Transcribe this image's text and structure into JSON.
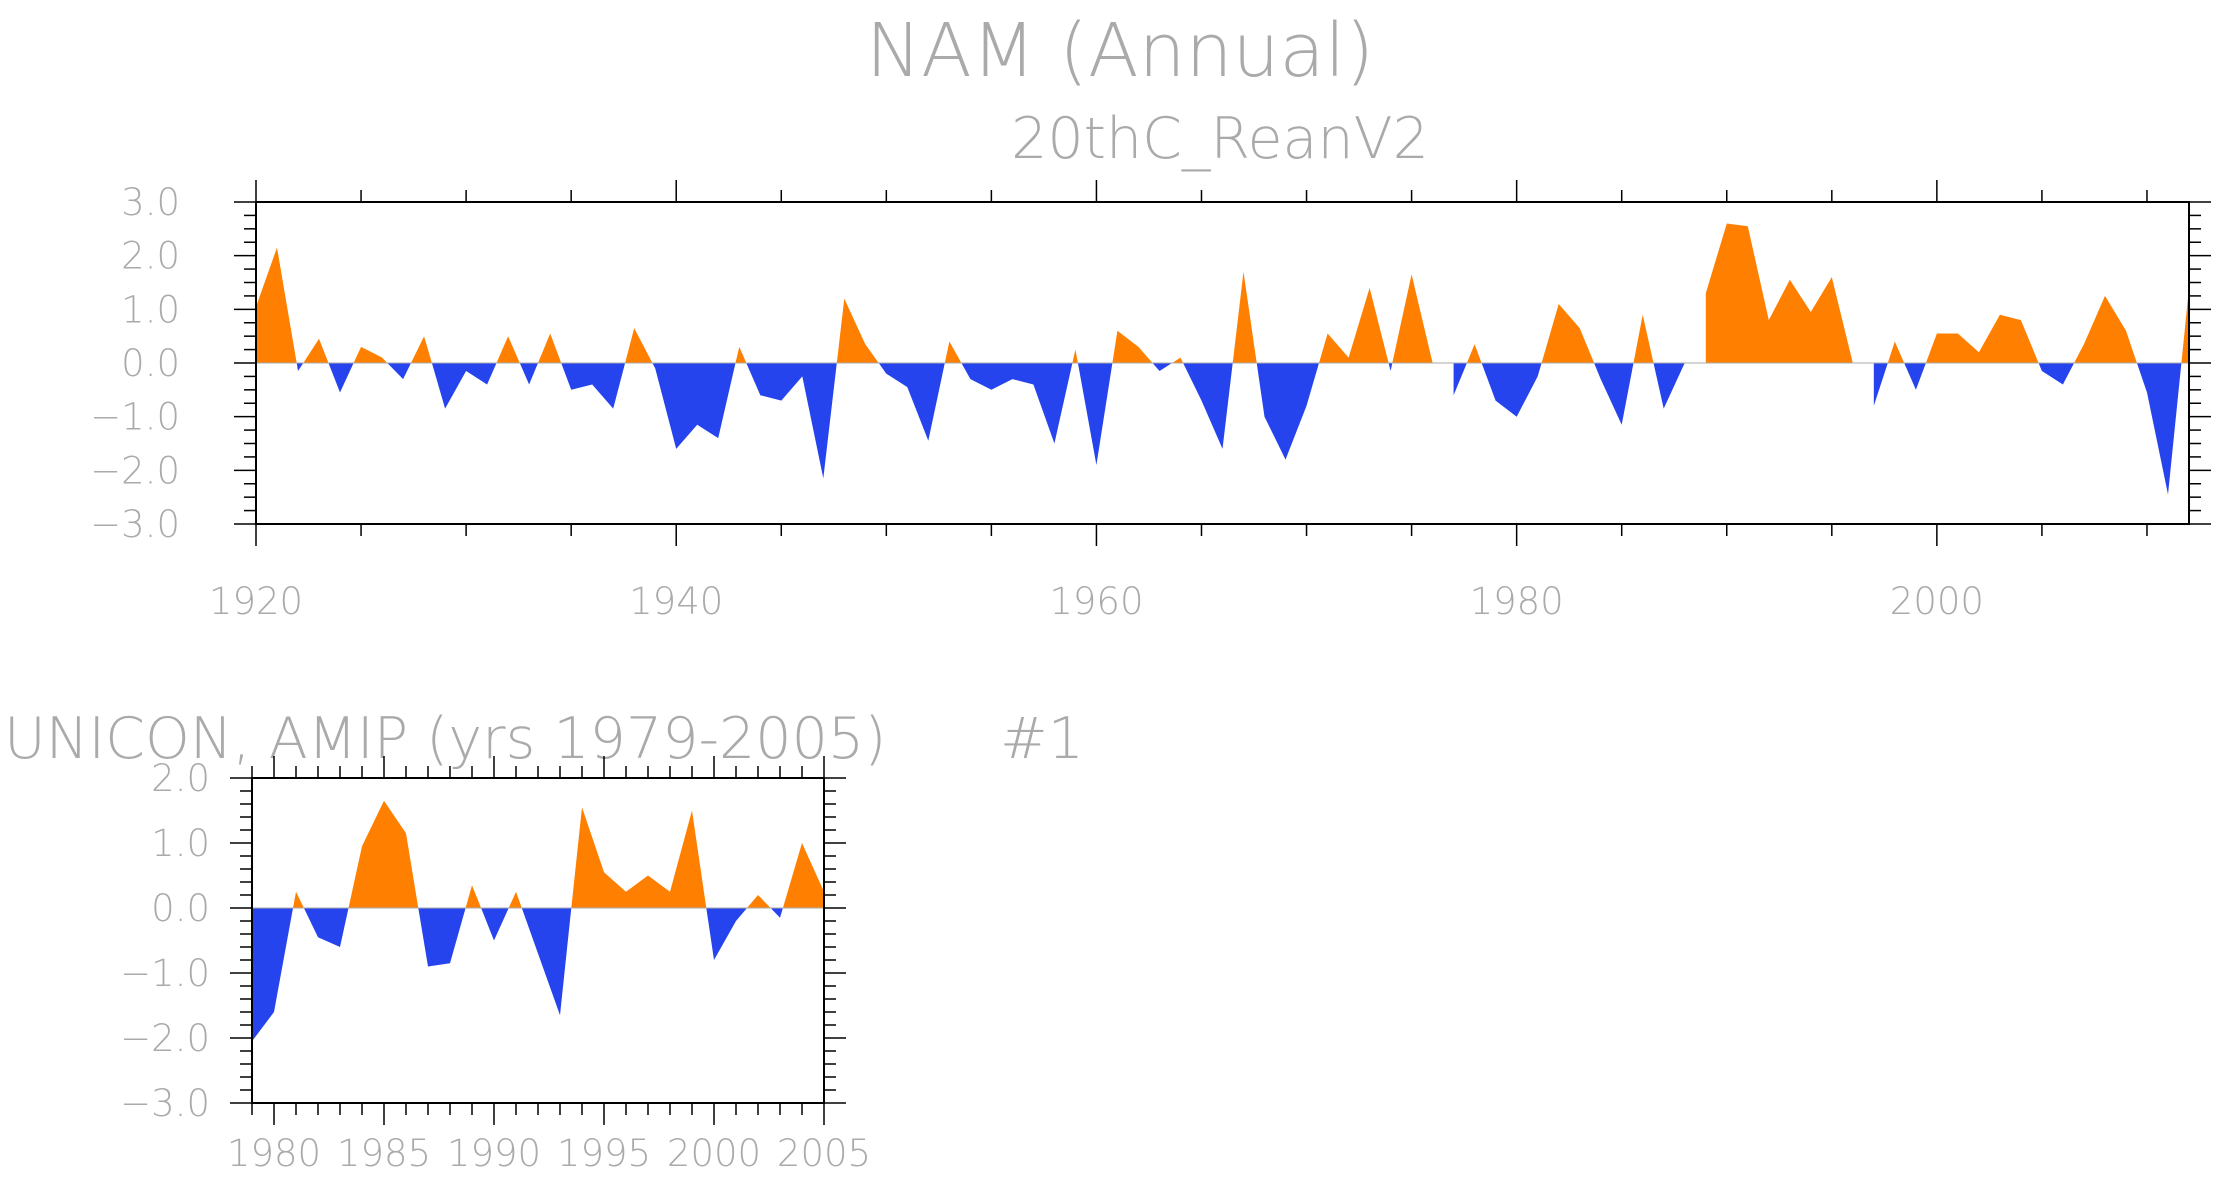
{
  "figure": {
    "title": "NAM (Annual)",
    "colors": {
      "positive": "#ff8000",
      "negative": "#2644ee",
      "axis": "#aaaaaa",
      "text": "#aaaaaa"
    }
  },
  "chart_data": [
    {
      "type": "area",
      "title": "20thC_ReanV2",
      "xlabel": "",
      "ylabel": "",
      "xlim": [
        1920,
        2012
      ],
      "ylim": [
        -3,
        3
      ],
      "xticks": [
        "1920",
        "1940",
        "1960",
        "1980",
        "2000"
      ],
      "yticks": [
        "3.0",
        "2.0",
        "1.0",
        "0.0",
        "−1.0",
        "−2.0",
        "−3.0"
      ],
      "x": [
        1920,
        1921,
        1922,
        1923,
        1924,
        1925,
        1926,
        1927,
        1928,
        1929,
        1930,
        1931,
        1932,
        1933,
        1934,
        1935,
        1936,
        1937,
        1938,
        1939,
        1940,
        1941,
        1942,
        1943,
        1944,
        1945,
        1946,
        1947,
        1948,
        1949,
        1950,
        1951,
        1952,
        1953,
        1954,
        1955,
        1956,
        1957,
        1958,
        1959,
        1960,
        1961,
        1962,
        1963,
        1964,
        1965,
        1966,
        1967,
        1968,
        1969,
        1970,
        1971,
        1972,
        1973,
        1974,
        1975,
        1976,
        1977,
        1978,
        1979,
        1980,
        1981,
        1982,
        1983,
        1984,
        1985,
        1986,
        1987,
        1988,
        1989,
        1990,
        1991,
        1992,
        1993,
        1994,
        1995,
        1996,
        1997,
        1998,
        1999,
        2000,
        2001,
        2002,
        2003,
        2004,
        2005,
        2006,
        2007,
        2008,
        2009,
        2010,
        2011,
        2012
      ],
      "values": [
        1.05,
        2.15,
        -0.15,
        0.45,
        -0.55,
        0.3,
        0.1,
        -0.3,
        0.5,
        -0.85,
        -0.15,
        -0.4,
        0.5,
        -0.4,
        0.55,
        -0.5,
        -0.4,
        -0.85,
        0.65,
        -0.1,
        -1.6,
        -1.15,
        -1.4,
        0.3,
        -0.6,
        -0.7,
        -0.25,
        -2.15,
        1.2,
        0.35,
        -0.2,
        -0.45,
        -1.45,
        0.4,
        -0.3,
        -0.5,
        -0.3,
        -0.4,
        -1.5,
        0.25,
        -1.9,
        0.6,
        0.3,
        -0.15,
        0.1,
        -0.7,
        -1.6,
        1.7,
        -1.0,
        -1.8,
        -0.8,
        0.55,
        0.1,
        1.4,
        -0.15,
        1.65,
        0.0,
        -0.6,
        0.35,
        -0.7,
        -1.0,
        -0.25,
        1.1,
        0.65,
        -0.3,
        -1.15,
        0.9,
        -0.85,
        0.0,
        1.3,
        2.6,
        2.55,
        0.8,
        1.55,
        0.95,
        1.6,
        0.0,
        -0.8,
        0.4,
        -0.5,
        0.55,
        0.55,
        0.2,
        0.9,
        0.8,
        -0.15,
        -0.4,
        0.35,
        1.25,
        0.6,
        -0.55,
        -2.45,
        1.4
      ]
    },
    {
      "type": "area",
      "title": "UNICON, AMIP (yrs 1979-2005)",
      "label": "#1",
      "xlabel": "",
      "ylabel": "",
      "xlim": [
        1979,
        2005
      ],
      "ylim": [
        -3,
        2
      ],
      "xticks": [
        "1980",
        "1985",
        "1990",
        "1995",
        "2000",
        "2005"
      ],
      "yticks": [
        "2.0",
        "1.0",
        "0.0",
        "−1.0",
        "−2.0",
        "−3.0"
      ],
      "x": [
        1979,
        1980,
        1981,
        1982,
        1983,
        1984,
        1985,
        1986,
        1987,
        1988,
        1989,
        1990,
        1991,
        1992,
        1993,
        1994,
        1995,
        1996,
        1997,
        1998,
        1999,
        2000,
        2001,
        2002,
        2003,
        2004,
        2005
      ],
      "values": [
        -2.05,
        -1.6,
        0.25,
        -0.45,
        -0.6,
        0.95,
        1.65,
        1.15,
        -0.9,
        -0.85,
        0.35,
        -0.5,
        0.25,
        -0.7,
        -1.65,
        1.55,
        0.55,
        0.25,
        0.5,
        0.25,
        1.5,
        -0.8,
        -0.2,
        0.2,
        -0.15,
        1.0,
        0.25
      ]
    }
  ]
}
